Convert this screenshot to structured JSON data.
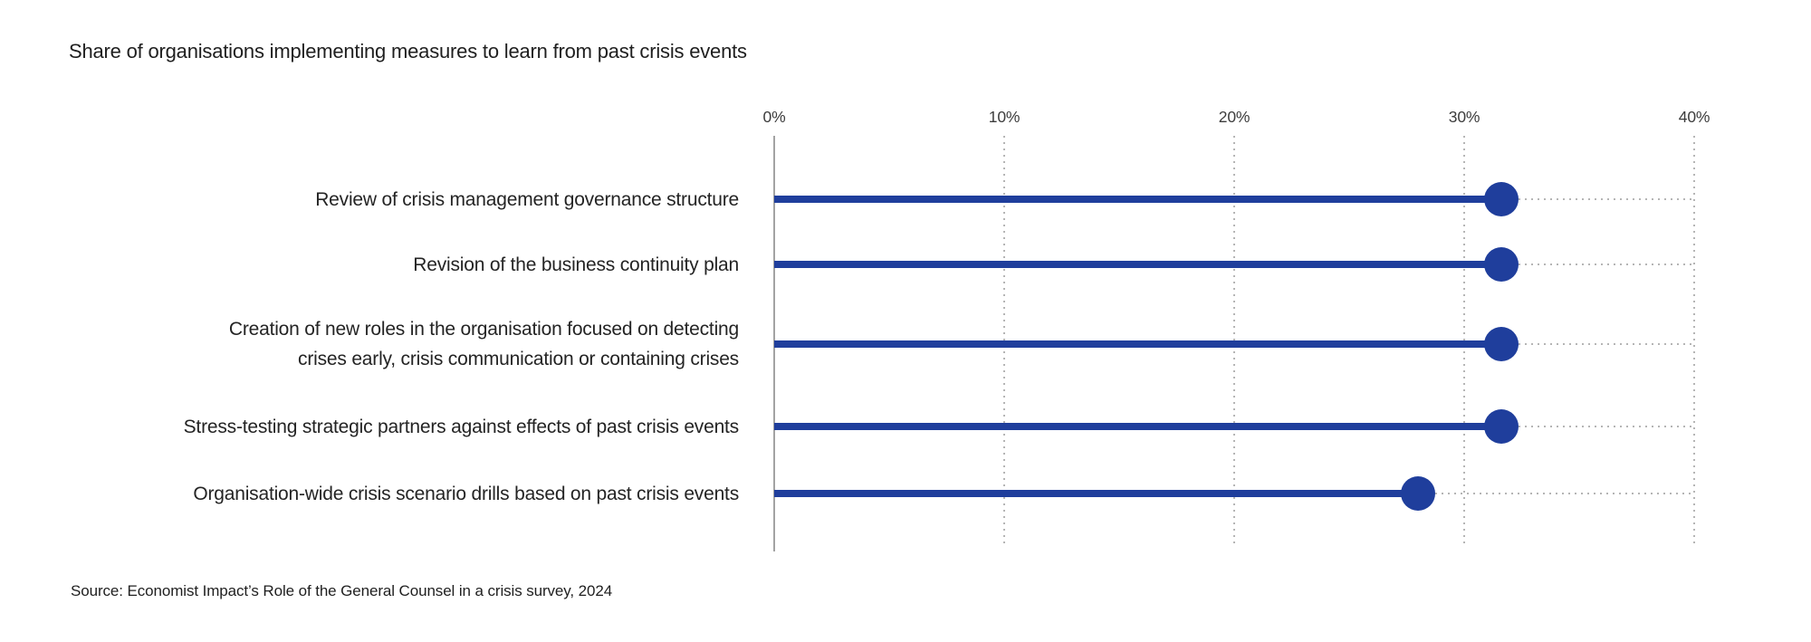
{
  "title": "Share of organisations implementing measures to learn from past crisis events",
  "source": "Source: Economist Impact’s Role of the General Counsel in a crisis survey, 2024",
  "colors": {
    "accent_blue": "#1f3e9c",
    "grid_gray": "#b5b5b5",
    "axis_gray": "#a3a3a3",
    "text_dark": "#1f1f1f"
  },
  "chart_data": {
    "type": "bar",
    "subtype": "lollipop",
    "orientation": "horizontal",
    "title": "Share of organisations implementing measures to learn from past crisis events",
    "categories": [
      "Review of crisis management governance structure",
      "Revision of the business continuity plan",
      "Creation of new roles in the organisation focused on detecting crises early, crisis communication or containing crises",
      "Stress-testing strategic partners against effects of past crisis events",
      "Organisation-wide crisis scenario drills based on past crisis events"
    ],
    "label_lines": [
      [
        "Review of crisis management governance structure"
      ],
      [
        "Revision of the business continuity plan"
      ],
      [
        "Creation of new roles in the organisation focused on detecting",
        "crises early, crisis communication or containing crises"
      ],
      [
        "Stress-testing strategic partners against effects of past crisis events"
      ],
      [
        "Organisation-wide crisis scenario drills based on past crisis events"
      ]
    ],
    "values": [
      31.6,
      31.6,
      31.6,
      31.6,
      28
    ],
    "unit": "%",
    "xlabel": "",
    "ylabel": "",
    "xlim": [
      0,
      40
    ],
    "x_tick_labels": [
      "0%",
      "10%",
      "20%",
      "30%",
      "40%"
    ],
    "x_tick_values": [
      0,
      10,
      20,
      30,
      40
    ],
    "grid": "vertical dotted gridlines, solid zero axis, dotted leader lines from dot to right edge",
    "legend": "none"
  }
}
